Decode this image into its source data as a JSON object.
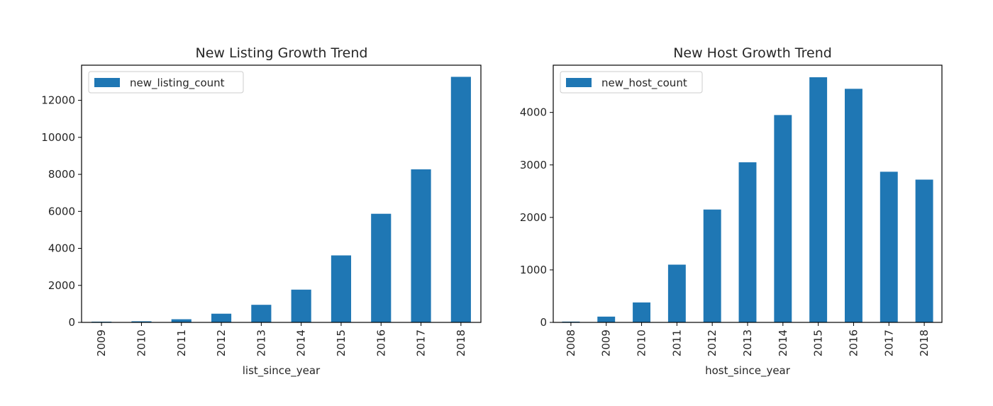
{
  "chart_data": [
    {
      "type": "bar",
      "title": "New Listing Growth Trend",
      "xlabel": "list_since_year",
      "ylabel": "",
      "categories": [
        "2009",
        "2010",
        "2011",
        "2012",
        "2013",
        "2014",
        "2015",
        "2016",
        "2017",
        "2018"
      ],
      "series": [
        {
          "name": "new_listing_count",
          "values": [
            40,
            60,
            170,
            470,
            950,
            1770,
            3620,
            5870,
            8270,
            13270
          ]
        }
      ],
      "ylim": [
        0,
        13900
      ],
      "yticks": [
        0,
        2000,
        4000,
        6000,
        8000,
        10000,
        12000
      ],
      "legend_position": "upper-left",
      "grid": false,
      "color": "#1f77b4"
    },
    {
      "type": "bar",
      "title": "New Host Growth Trend",
      "xlabel": "host_since_year",
      "ylabel": "",
      "categories": [
        "2008",
        "2009",
        "2010",
        "2011",
        "2012",
        "2013",
        "2014",
        "2015",
        "2016",
        "2017",
        "2018"
      ],
      "series": [
        {
          "name": "new_host_count",
          "values": [
            15,
            110,
            380,
            1100,
            2150,
            3050,
            3950,
            4670,
            4450,
            2870,
            2720
          ]
        }
      ],
      "ylim": [
        0,
        4900
      ],
      "yticks": [
        0,
        1000,
        2000,
        3000,
        4000
      ],
      "legend_position": "upper-left",
      "grid": false,
      "color": "#1f77b4"
    }
  ]
}
